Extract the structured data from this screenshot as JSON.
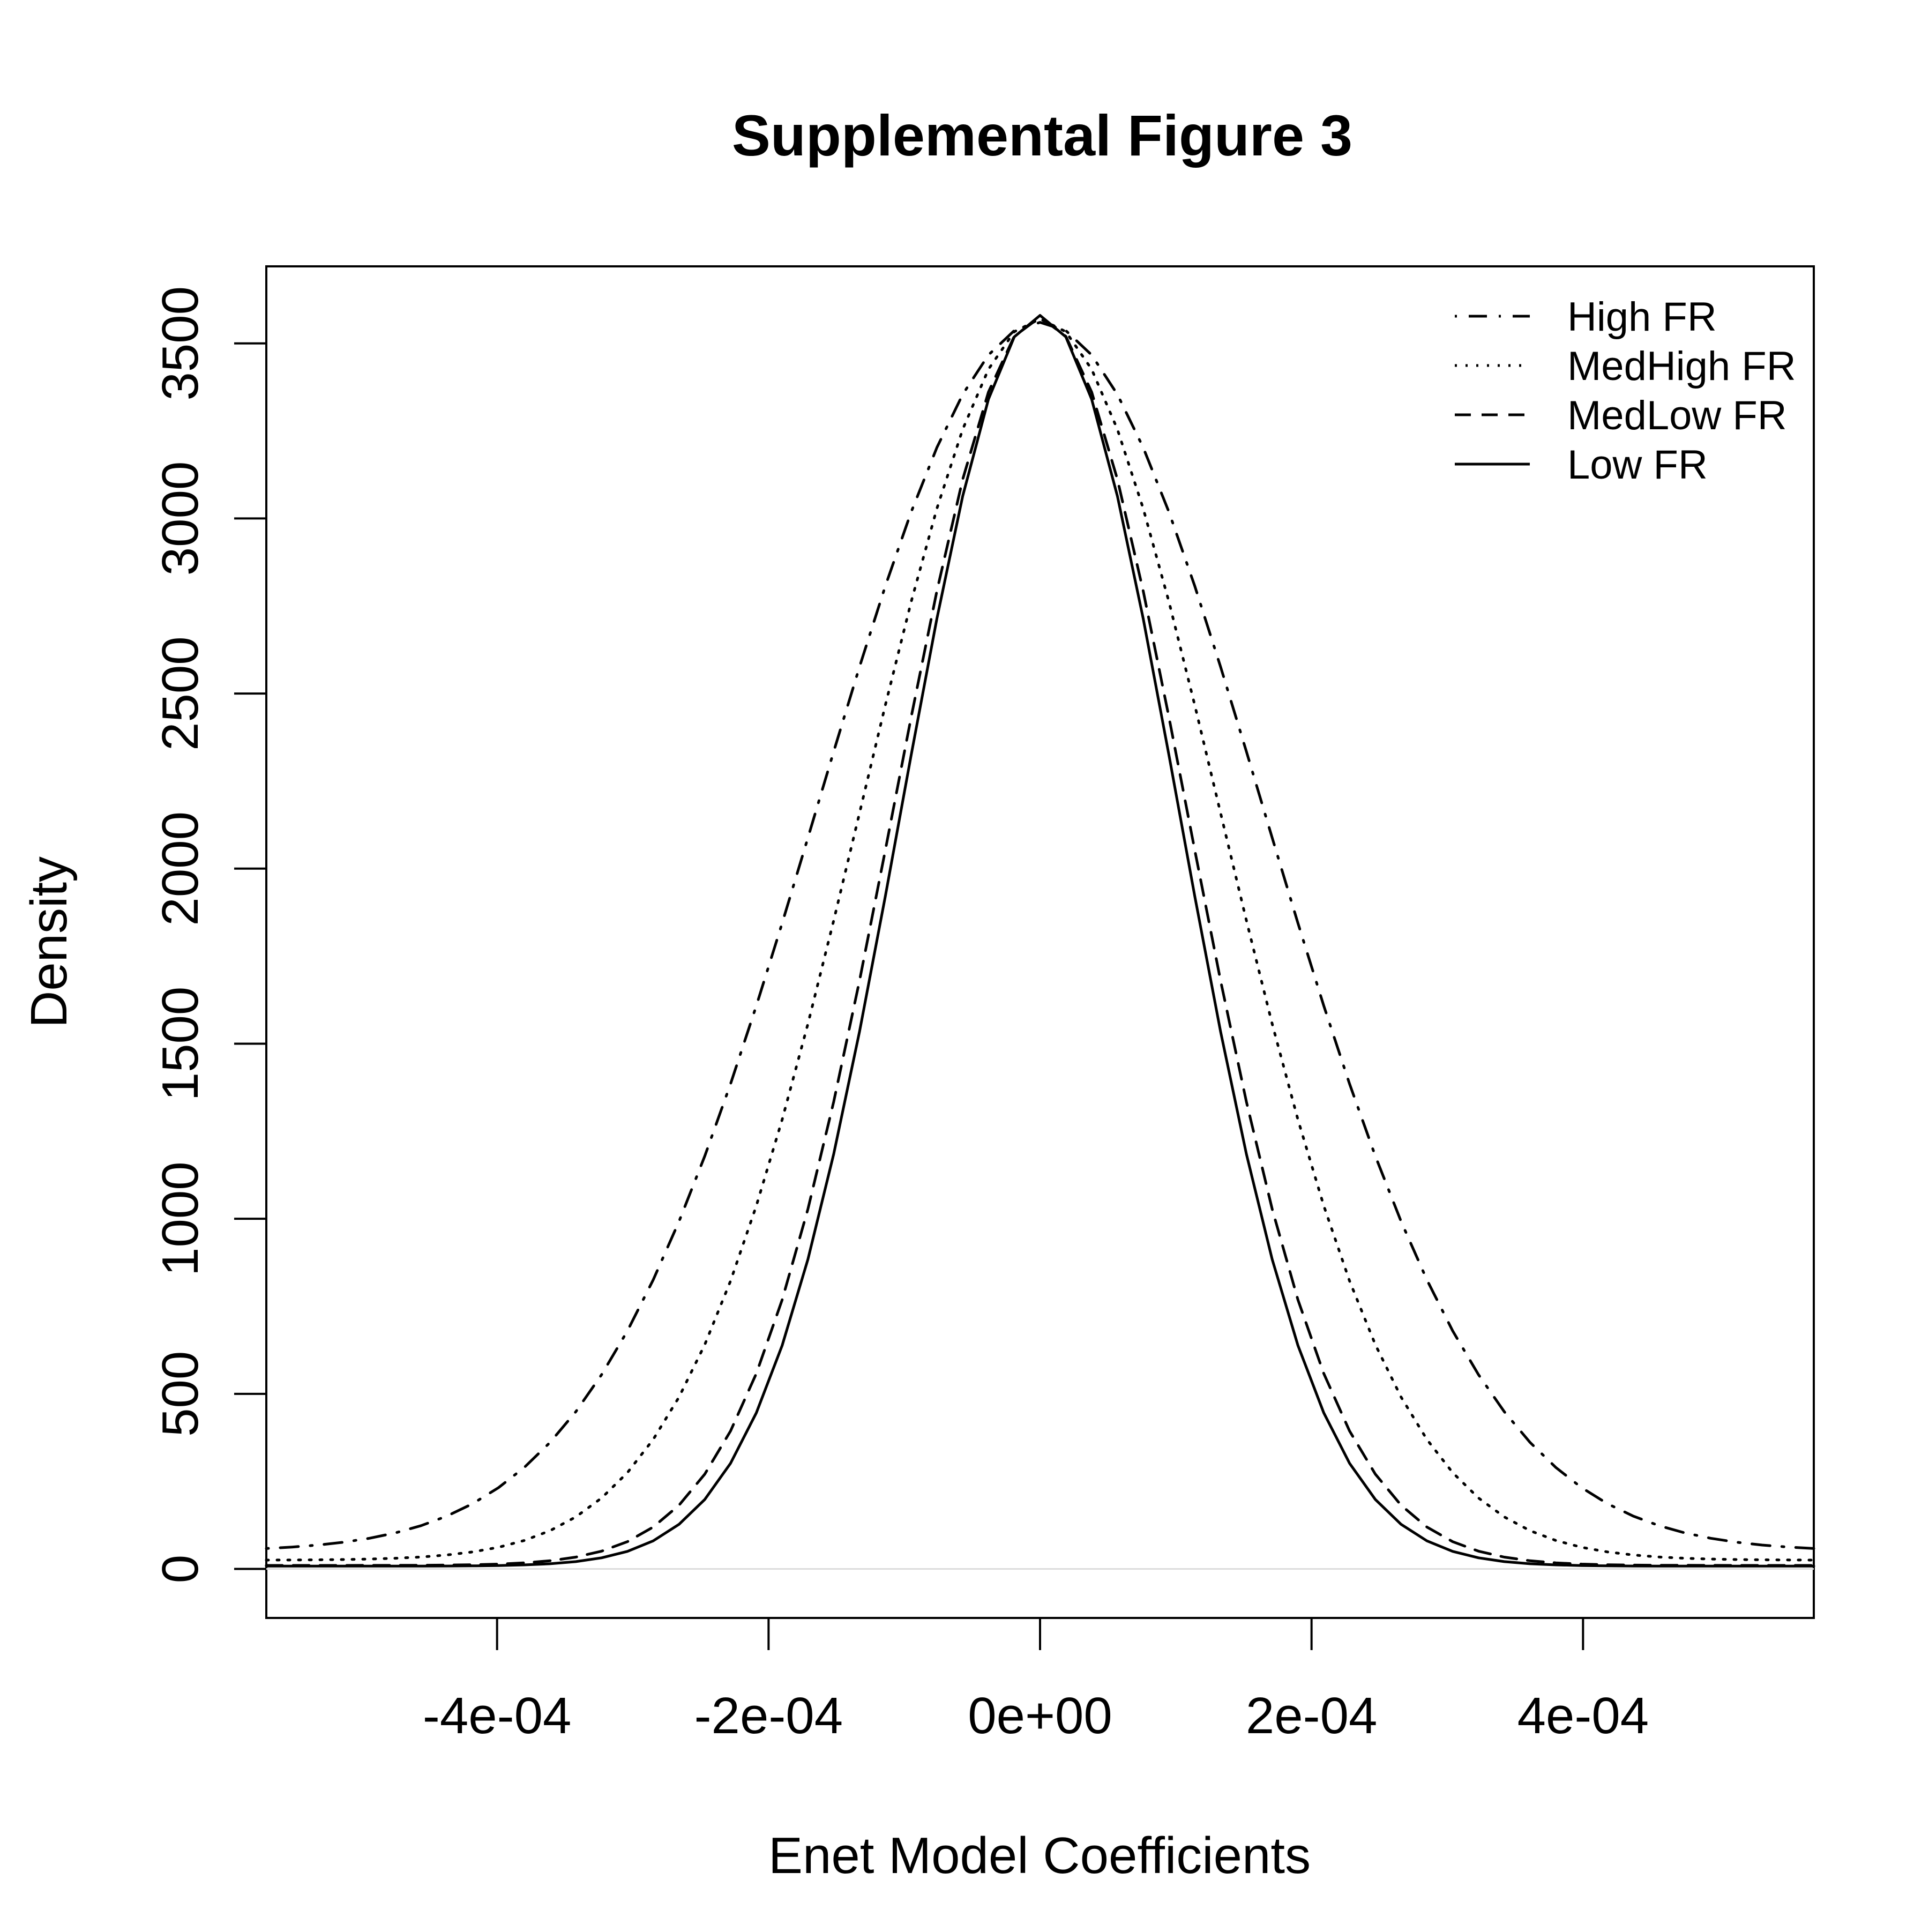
{
  "chart_data": {
    "type": "line",
    "title": "Supplemental Figure 3",
    "xlabel": "Enet Model Coefficients",
    "ylabel": "Density",
    "xlim": [
      -0.00057,
      0.00057
    ],
    "ylim": [
      -140,
      3720
    ],
    "x_ticks": [
      -0.0004,
      -0.0002,
      0,
      0.0002,
      0.0004
    ],
    "x_tick_labels": [
      "-4e-04",
      "-2e-04",
      "0e+00",
      "2e-04",
      "4e-04"
    ],
    "y_ticks": [
      0,
      500,
      1000,
      1500,
      2000,
      2500,
      3000,
      3500
    ],
    "y_tick_labels": [
      "0",
      "500",
      "1000",
      "1500",
      "2000",
      "2500",
      "3000",
      "3500"
    ],
    "zero_line": true,
    "grid": false,
    "legend_position": "top-right",
    "x_range": [
      -0.00057,
      0.00057
    ],
    "series": [
      {
        "name": "High FR",
        "line_style": "dotdash",
        "peak": 3560,
        "sd": 0.000164,
        "floor": 50
      },
      {
        "name": "MedHigh FR",
        "line_style": "dotted",
        "peak": 3570,
        "sd": 0.000132,
        "floor": 25
      },
      {
        "name": "MedLow FR",
        "line_style": "dashed",
        "peak": 3575,
        "sd": 0.000108,
        "floor": 10
      },
      {
        "name": "Low FR",
        "line_style": "solid",
        "peak": 3580,
        "sd": 0.000102,
        "floor": 8
      }
    ],
    "colors": {
      "line": "#000000",
      "zero_line": "#dddddd",
      "background": "#ffffff"
    }
  }
}
